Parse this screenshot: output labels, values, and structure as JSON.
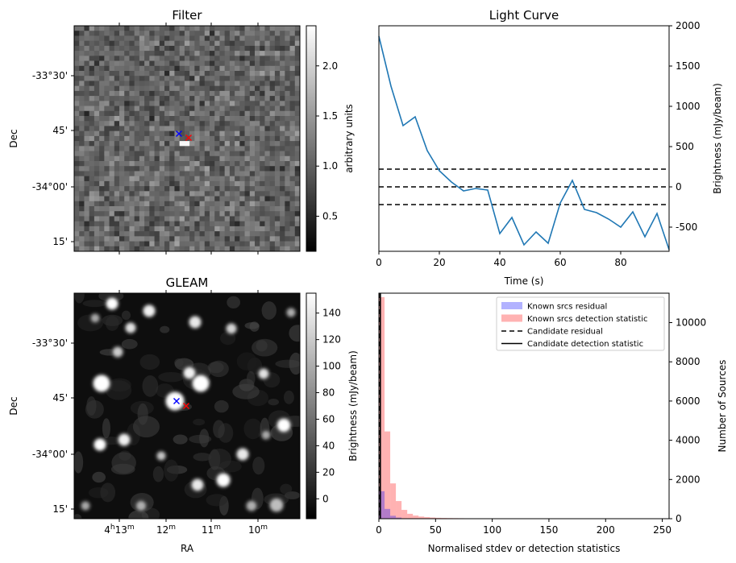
{
  "chart_data": [
    {
      "type": "heatmap",
      "title": "Filter",
      "xlabel": "",
      "ylabel": "Dec",
      "y_tick_labels": [
        "-33°30'",
        "45'",
        "-34°00'",
        "15'"
      ],
      "colorbar": {
        "label": "arbitrary units",
        "range": [
          0.15,
          2.4
        ],
        "ticks": [
          0.5,
          1.0,
          1.5,
          2.0
        ],
        "tick_labels": [
          "0.5",
          "1.0",
          "1.5",
          "2.0"
        ]
      },
      "colormap": "gray",
      "markers": [
        {
          "symbol": "x",
          "color": "#0000ff"
        },
        {
          "symbol": "x",
          "color": "#ff0000"
        }
      ]
    },
    {
      "type": "line",
      "title": "Light Curve",
      "xlabel": "Time (s)",
      "ylabel": "Brightness (mJy/beam)",
      "xlim": [
        0,
        96
      ],
      "ylim": [
        -800,
        2000
      ],
      "x_ticks": [
        0,
        20,
        40,
        60,
        80
      ],
      "y_ticks": [
        -500,
        0,
        500,
        1000,
        1500,
        2000
      ],
      "y_axis_side": "right",
      "x": [
        0,
        4,
        8,
        12,
        16,
        20,
        24,
        28,
        32,
        36,
        40,
        44,
        48,
        52,
        56,
        60,
        64,
        68,
        72,
        76,
        80,
        84,
        88,
        92,
        96
      ],
      "series": [
        {
          "values": [
            1870,
            1250,
            760,
            870,
            450,
            200,
            60,
            -50,
            -20,
            -40,
            -580,
            -380,
            -720,
            -560,
            -700,
            -200,
            80,
            -280,
            -320,
            -400,
            -500,
            -310,
            -620,
            -330,
            -780
          ],
          "color": "#1f77b4"
        }
      ],
      "hlines": [
        {
          "y": 220,
          "style": "dashed",
          "color": "#000000"
        },
        {
          "y": 0,
          "style": "dashed",
          "color": "#000000"
        },
        {
          "y": -220,
          "style": "dashed",
          "color": "#000000"
        }
      ]
    },
    {
      "type": "heatmap",
      "title": "GLEAM",
      "xlabel": "RA",
      "ylabel": "Dec",
      "x_tick_labels": [
        {
          "base": "4",
          "h": "h",
          "min": "13",
          "m": "m"
        },
        {
          "base": "12",
          "m": "m"
        },
        {
          "base": "11",
          "m": "m"
        },
        {
          "base": "10",
          "m": "m"
        }
      ],
      "y_tick_labels": [
        "-33°30'",
        "45'",
        "-34°00'",
        "15'"
      ],
      "colorbar": {
        "label": "Brightness (mJy/beam)",
        "range": [
          -15,
          155
        ],
        "ticks": [
          0,
          20,
          40,
          60,
          80,
          100,
          120,
          140
        ],
        "tick_labels": [
          "0",
          "20",
          "40",
          "60",
          "80",
          "100",
          "120",
          "140"
        ]
      },
      "colormap": "gray",
      "markers": [
        {
          "symbol": "x",
          "color": "#0000ff"
        },
        {
          "symbol": "x",
          "color": "#ff0000"
        }
      ]
    },
    {
      "type": "bar",
      "subtype": "histogram",
      "title": "",
      "xlabel": "Normalised stdev or detection statistics",
      "ylabel": "Number of Sources",
      "xlim": [
        0,
        256
      ],
      "ylim": [
        0,
        11500
      ],
      "x_ticks": [
        0,
        50,
        100,
        150,
        200,
        250
      ],
      "y_ticks": [
        0,
        2000,
        4000,
        6000,
        8000,
        10000
      ],
      "y_axis_side": "right",
      "bin_width": 5,
      "series": [
        {
          "name": "Known srcs residual",
          "color": "#0000ff",
          "alpha": 0.3,
          "bin_starts": [
            0,
            5,
            10,
            15,
            20
          ],
          "values": [
            1400,
            500,
            150,
            60,
            20
          ]
        },
        {
          "name": "Known srcs detection statistic",
          "color": "#ff0000",
          "alpha": 0.3,
          "bin_starts": [
            0,
            5,
            10,
            15,
            20,
            25,
            30,
            35,
            40,
            45,
            50,
            55,
            60,
            65,
            70,
            75,
            80,
            85,
            90,
            95,
            100,
            105,
            110,
            115,
            120,
            125,
            130,
            135,
            140,
            145,
            150,
            155,
            160,
            165,
            170,
            175,
            180,
            185,
            190,
            195
          ],
          "values": [
            11300,
            4450,
            1800,
            900,
            450,
            250,
            160,
            110,
            80,
            60,
            45,
            38,
            32,
            28,
            24,
            20,
            18,
            16,
            14,
            12,
            11,
            10,
            9,
            8,
            8,
            7,
            7,
            6,
            6,
            5,
            6,
            5,
            5,
            4,
            4,
            4,
            3,
            3,
            3,
            3
          ]
        }
      ],
      "legend": {
        "placement": "top-right",
        "entries": [
          {
            "label": "Known srcs residual",
            "kind": "patch",
            "color": "#0000ff"
          },
          {
            "label": "Known srcs detection statistic",
            "kind": "patch",
            "color": "#ff0000"
          },
          {
            "label": "Candidate residual",
            "kind": "dashed-line",
            "color": "#000000"
          },
          {
            "label": "Candidate detection statistic",
            "kind": "solid-line",
            "color": "#000000"
          }
        ]
      },
      "candidate_lines": [
        {
          "name": "Candidate residual",
          "x": 1,
          "style": "dashed"
        },
        {
          "name": "Candidate detection statistic",
          "x": 1.3,
          "style": "solid"
        }
      ]
    }
  ]
}
